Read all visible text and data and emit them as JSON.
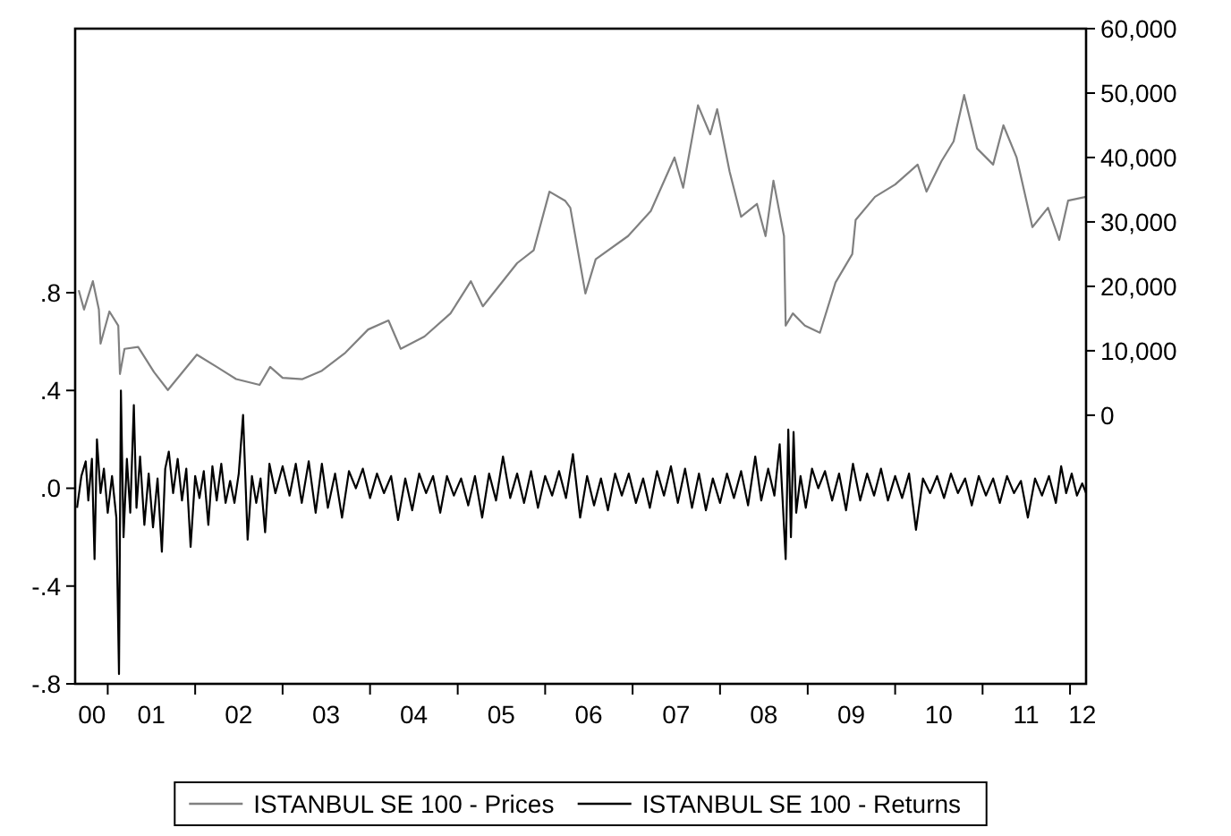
{
  "chart_data": {
    "type": "line",
    "legend": "bottom",
    "grid": false,
    "marker": "none",
    "line_style": "solid",
    "xlim": [
      "2000-08-18",
      "2012-03-08"
    ],
    "xticks": [
      {
        "value": "2000-10-27",
        "label": "00"
      },
      {
        "value": "2001-01-01",
        "label": null
      },
      {
        "value": "2001-07-02",
        "label": "01"
      },
      {
        "value": "2002-01-01",
        "label": null
      },
      {
        "value": "2002-07-02",
        "label": "02"
      },
      {
        "value": "2003-01-01",
        "label": null
      },
      {
        "value": "2003-07-02",
        "label": "03"
      },
      {
        "value": "2004-01-01",
        "label": null
      },
      {
        "value": "2004-07-02",
        "label": "04"
      },
      {
        "value": "2005-01-01",
        "label": null
      },
      {
        "value": "2005-07-02",
        "label": "05"
      },
      {
        "value": "2006-01-01",
        "label": null
      },
      {
        "value": "2006-07-02",
        "label": "06"
      },
      {
        "value": "2007-01-01",
        "label": null
      },
      {
        "value": "2007-07-02",
        "label": "07"
      },
      {
        "value": "2008-01-01",
        "label": null
      },
      {
        "value": "2008-07-02",
        "label": "08"
      },
      {
        "value": "2009-01-01",
        "label": null
      },
      {
        "value": "2009-07-02",
        "label": "09"
      },
      {
        "value": "2010-01-01",
        "label": null
      },
      {
        "value": "2010-07-02",
        "label": "10"
      },
      {
        "value": "2011-01-01",
        "label": null
      },
      {
        "value": "2011-07-02",
        "label": "11"
      },
      {
        "value": "2012-01-01",
        "label": null
      },
      {
        "value": "2012-02-21",
        "label": "12"
      }
    ],
    "ylim": [
      -0.8,
      1.88
    ],
    "yticks": [
      {
        "value": -0.8,
        "label": "-.8"
      },
      {
        "value": -0.4,
        "label": "-.4"
      },
      {
        "value": 0,
        "label": ".0"
      },
      {
        "value": 0.4,
        "label": ".4"
      },
      {
        "value": 0.8,
        "label": ".8"
      }
    ],
    "y2lim": [
      -41700,
      60000
    ],
    "y2ticks": [
      0,
      {
        "value": 10000,
        "label": "10,000"
      },
      {
        "value": 20000,
        "label": "20,000"
      },
      {
        "value": 30000,
        "label": "30,000"
      },
      {
        "value": 40000,
        "label": "40,000"
      },
      {
        "value": 50000,
        "label": "50,000"
      },
      {
        "value": 60000,
        "label": "60,000"
      }
    ],
    "series": [
      {
        "name": "ISTANBUL SE 100 - Prices",
        "color": "#808080",
        "axis": "y2",
        "x": [
          "2000-09-02",
          "2000-09-24",
          "2000-10-31",
          "2000-11-25",
          "2000-12-02",
          "2001-01-08",
          "2001-02-14",
          "2001-02-21",
          "2001-03-12",
          "2001-05-08",
          "2001-07-13",
          "2001-09-09",
          "2002-01-08",
          "2002-04-01",
          "2002-06-21",
          "2002-09-27",
          "2002-11-10",
          "2003-01-01",
          "2003-03-25",
          "2003-06-14",
          "2003-09-20",
          "2003-12-24",
          "2004-03-18",
          "2004-05-08",
          "2004-08-15",
          "2004-12-02",
          "2005-02-25",
          "2005-04-16",
          "2005-09-06",
          "2005-11-14",
          "2006-01-19",
          "2006-03-25",
          "2006-04-16",
          "2006-06-18",
          "2006-07-31",
          "2006-12-13",
          "2007-03-18",
          "2007-06-25",
          "2007-07-31",
          "2007-10-01",
          "2007-11-21",
          "2007-12-20",
          "2008-02-10",
          "2008-03-29",
          "2008-06-03",
          "2008-07-09",
          "2008-08-11",
          "2008-09-24",
          "2008-10-01",
          "2008-10-31",
          "2008-12-20",
          "2009-02-21",
          "2009-04-27",
          "2009-07-06",
          "2009-07-20",
          "2009-10-09",
          "2010-01-01",
          "2010-04-05",
          "2010-05-12",
          "2010-07-13",
          "2010-09-02",
          "2010-10-16",
          "2010-12-09",
          "2011-02-14",
          "2011-03-29",
          "2011-05-23",
          "2011-07-28",
          "2011-10-01",
          "2011-11-17",
          "2011-12-24",
          "2012-03-08"
        ],
        "values": [
          19400,
          16400,
          20800,
          16400,
          11100,
          16100,
          13900,
          6400,
          10300,
          10600,
          6700,
          3900,
          9400,
          7500,
          5600,
          4700,
          7500,
          5800,
          5600,
          6900,
          9700,
          13300,
          14700,
          10300,
          12200,
          15800,
          20800,
          16900,
          23600,
          25600,
          34700,
          33300,
          32200,
          18900,
          24200,
          27800,
          31700,
          40000,
          35300,
          48100,
          43600,
          47500,
          37800,
          30800,
          32800,
          27800,
          36400,
          27800,
          13900,
          15800,
          13900,
          12800,
          20600,
          25000,
          30300,
          33900,
          35800,
          38900,
          34700,
          39400,
          42500,
          49700,
          41400,
          38900,
          45000,
          40000,
          29200,
          32200,
          27200,
          33300,
          33900
        ]
      },
      {
        "name": "ISTANBUL SE 100 - Returns",
        "color": "#000000",
        "x": [
          "2000-08-26",
          "2000-09-13",
          "2000-10-01",
          "2000-10-12",
          "2000-10-27",
          "2000-11-07",
          "2000-11-17",
          "2000-12-02",
          "2000-12-16",
          "2001-01-01",
          "2001-01-19",
          "2001-02-06",
          "2001-02-17",
          "2001-02-25",
          "2001-03-08",
          "2001-03-22",
          "2001-04-05",
          "2001-04-20",
          "2001-05-01",
          "2001-05-16",
          "2001-06-03",
          "2001-06-21",
          "2001-07-09",
          "2001-07-28",
          "2001-08-15",
          "2001-08-29",
          "2001-09-13",
          "2001-10-01",
          "2001-10-20",
          "2001-11-07",
          "2001-11-25",
          "2001-12-13",
          "2002-01-01",
          "2002-01-19",
          "2002-02-06",
          "2002-02-25",
          "2002-03-14",
          "2002-04-01",
          "2002-04-20",
          "2002-05-08",
          "2002-05-27",
          "2002-06-14",
          "2002-07-02",
          "2002-07-20",
          "2002-08-08",
          "2002-08-26",
          "2002-09-13",
          "2002-10-01",
          "2002-10-20",
          "2002-11-07",
          "2002-12-02",
          "2003-01-01",
          "2003-01-30",
          "2003-02-25",
          "2003-03-22",
          "2003-04-20",
          "2003-05-19",
          "2003-06-14",
          "2003-07-09",
          "2003-08-08",
          "2003-09-06",
          "2003-10-05",
          "2003-11-03",
          "2003-12-02",
          "2004-01-01",
          "2004-01-30",
          "2004-02-28",
          "2004-03-29",
          "2004-04-27",
          "2004-05-27",
          "2004-06-25",
          "2004-07-24",
          "2004-08-22",
          "2004-09-20",
          "2004-10-20",
          "2004-11-17",
          "2004-12-16",
          "2005-01-15",
          "2005-02-14",
          "2005-03-14",
          "2005-04-13",
          "2005-05-12",
          "2005-06-10",
          "2005-07-09",
          "2005-08-08",
          "2005-09-06",
          "2005-10-05",
          "2005-11-03",
          "2005-12-02",
          "2006-01-01",
          "2006-01-30",
          "2006-02-28",
          "2006-03-29",
          "2006-04-27",
          "2006-05-27",
          "2006-06-25",
          "2006-07-24",
          "2006-08-22",
          "2006-09-20",
          "2006-10-20",
          "2006-11-17",
          "2006-12-16",
          "2007-01-15",
          "2007-02-14",
          "2007-03-14",
          "2007-04-13",
          "2007-05-12",
          "2007-06-10",
          "2007-07-09",
          "2007-08-08",
          "2007-09-06",
          "2007-10-05",
          "2007-11-03",
          "2007-12-02",
          "2008-01-01",
          "2008-01-30",
          "2008-02-28",
          "2008-03-29",
          "2008-04-27",
          "2008-05-27",
          "2008-06-21",
          "2008-07-20",
          "2008-08-15",
          "2008-09-06",
          "2008-09-20",
          "2008-10-01",
          "2008-10-12",
          "2008-10-23",
          "2008-11-03",
          "2008-11-14",
          "2008-12-02",
          "2008-12-24",
          "2009-01-19",
          "2009-02-14",
          "2009-03-14",
          "2009-04-13",
          "2009-05-12",
          "2009-06-10",
          "2009-07-09",
          "2009-08-08",
          "2009-09-06",
          "2009-10-05",
          "2009-11-03",
          "2009-12-02",
          "2010-01-01",
          "2010-01-30",
          "2010-02-28",
          "2010-03-29",
          "2010-04-27",
          "2010-05-27",
          "2010-06-25",
          "2010-07-24",
          "2010-08-22",
          "2010-09-20",
          "2010-10-20",
          "2010-11-17",
          "2010-12-16",
          "2011-01-15",
          "2011-02-14",
          "2011-03-14",
          "2011-04-13",
          "2011-05-12",
          "2011-06-10",
          "2011-07-09",
          "2011-08-08",
          "2011-09-06",
          "2011-10-05",
          "2011-11-03",
          "2011-11-25",
          "2011-12-16",
          "2012-01-08",
          "2012-01-30",
          "2012-02-21",
          "2012-03-08"
        ],
        "values": [
          -0.08,
          0.05,
          0.11,
          -0.05,
          0.12,
          -0.29,
          0.2,
          -0.02,
          0.08,
          -0.1,
          0.05,
          -0.12,
          -0.76,
          0.4,
          -0.2,
          0.12,
          -0.1,
          0.34,
          -0.08,
          0.13,
          -0.15,
          0.06,
          -0.16,
          0.04,
          -0.26,
          0.08,
          0.15,
          -0.02,
          0.12,
          -0.05,
          0.08,
          -0.24,
          0.05,
          -0.04,
          0.07,
          -0.15,
          0.09,
          -0.05,
          0.1,
          -0.06,
          0.03,
          -0.06,
          0.06,
          0.3,
          -0.21,
          0.05,
          -0.06,
          0.04,
          -0.18,
          0.1,
          -0.02,
          0.09,
          -0.03,
          0.1,
          -0.06,
          0.11,
          -0.1,
          0.1,
          -0.08,
          0.06,
          -0.12,
          0.07,
          0,
          0.08,
          -0.04,
          0.06,
          -0.02,
          0.05,
          -0.13,
          0.04,
          -0.09,
          0.06,
          -0.02,
          0.05,
          -0.1,
          0.05,
          -0.03,
          0.04,
          -0.07,
          0.05,
          -0.12,
          0.06,
          -0.05,
          0.13,
          -0.04,
          0.06,
          -0.06,
          0.07,
          -0.08,
          0.05,
          -0.03,
          0.07,
          -0.04,
          0.14,
          -0.12,
          0.05,
          -0.07,
          0.04,
          -0.09,
          0.06,
          -0.03,
          0.06,
          -0.06,
          0.04,
          -0.08,
          0.07,
          -0.03,
          0.09,
          -0.06,
          0.08,
          -0.08,
          0.06,
          -0.09,
          0.04,
          -0.06,
          0.06,
          -0.04,
          0.07,
          -0.07,
          0.13,
          -0.05,
          0.08,
          -0.03,
          0.18,
          -0.08,
          -0.29,
          0.24,
          -0.2,
          0.23,
          -0.1,
          0.05,
          -0.08,
          0.08,
          0,
          0.07,
          -0.05,
          0.06,
          -0.09,
          0.1,
          -0.05,
          0.06,
          -0.03,
          0.08,
          -0.05,
          0.05,
          -0.04,
          0.06,
          -0.17,
          0.04,
          -0.02,
          0.05,
          -0.04,
          0.06,
          -0.02,
          0.04,
          -0.07,
          0.05,
          -0.03,
          0.04,
          -0.06,
          0.05,
          -0.02,
          0.03,
          -0.12,
          0.04,
          -0.03,
          0.05,
          -0.06,
          0.09,
          -0.02,
          0.06,
          -0.03,
          0.02,
          -0.02
        ]
      }
    ]
  }
}
